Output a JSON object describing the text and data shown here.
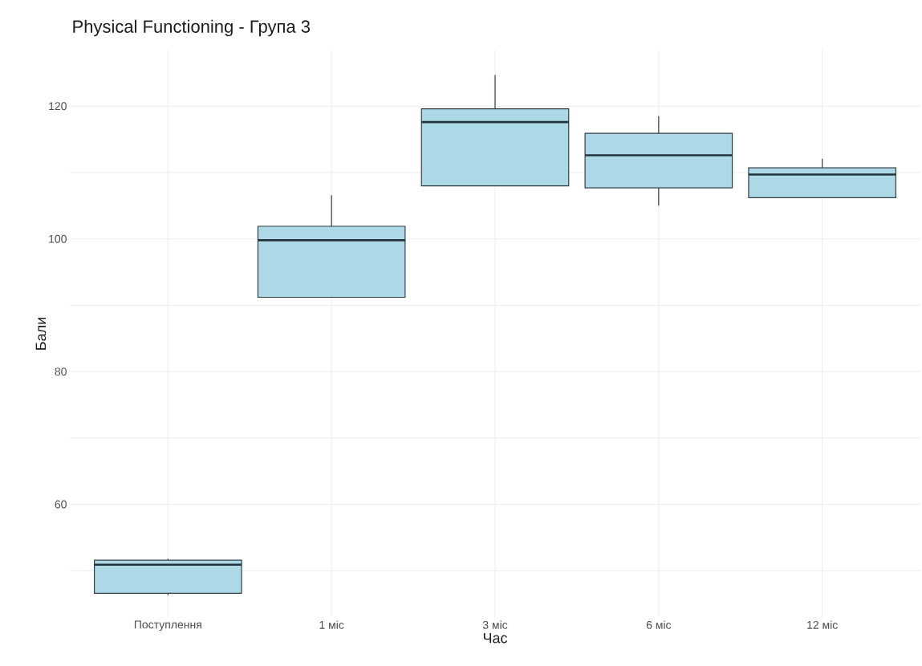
{
  "chart_data": {
    "type": "box",
    "title": "Physical Functioning - Група 3",
    "xlabel": "Час",
    "ylabel": "Бали",
    "categories": [
      "Поступлення",
      "1 міс",
      "3 міс",
      "6 міс",
      "12 міс"
    ],
    "series": [
      {
        "color": "#add8e6",
        "boxes": [
          {
            "low": 46.3,
            "q1": 46.6,
            "median": 50.9,
            "q3": 51.6,
            "high": 51.8
          },
          {
            "low": 91.2,
            "q1": 91.2,
            "median": 99.8,
            "q3": 101.9,
            "high": 106.6
          },
          {
            "low": 108.0,
            "q1": 108.0,
            "median": 117.6,
            "q3": 119.6,
            "high": 124.7
          },
          {
            "low": 105.0,
            "q1": 107.7,
            "median": 112.6,
            "q3": 115.9,
            "high": 118.5
          },
          {
            "low": 106.2,
            "q1": 106.2,
            "median": 109.7,
            "q3": 110.7,
            "high": 112.1
          }
        ]
      }
    ],
    "ylim": [
      42.9,
      128.5
    ],
    "yticks": [
      {
        "value": 50,
        "label": null
      },
      60,
      {
        "value": 70,
        "label": null
      },
      80,
      {
        "value": 90,
        "label": null
      },
      100,
      {
        "value": 110,
        "label": null
      },
      120
    ],
    "grid": true
  }
}
